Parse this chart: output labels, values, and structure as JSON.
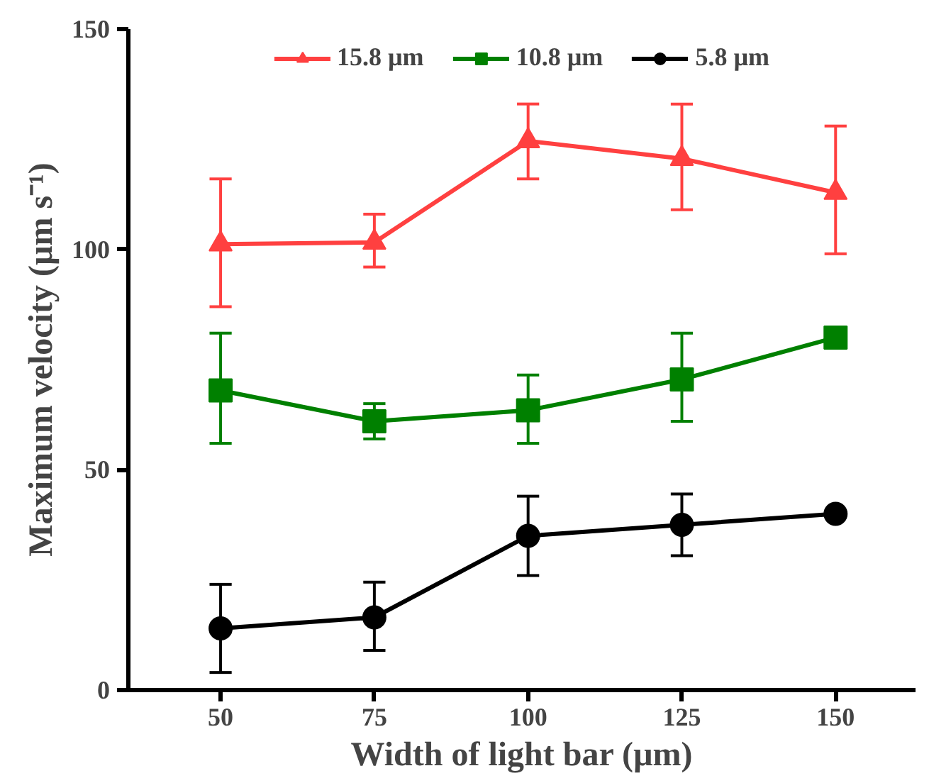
{
  "chart_data": {
    "type": "line",
    "xlabel": "Width of light bar (µm)",
    "ylabel": "Maximum velocity (µm s⁻¹)",
    "x": [
      50,
      75,
      100,
      125,
      150
    ],
    "xlim": [
      35,
      163
    ],
    "xticks": [
      50,
      75,
      100,
      125,
      150
    ],
    "ylim": [
      0,
      150
    ],
    "yticks": [
      0,
      50,
      100,
      150
    ],
    "grid": false,
    "legend": "top",
    "series": [
      {
        "name": "15.8 µm",
        "color": "#ff4040",
        "marker": "triangle",
        "values": [
          101.2,
          101.6,
          124.6,
          120.6,
          112.9
        ],
        "errors": [
          [
            87,
            116
          ],
          [
            96,
            108
          ],
          [
            116,
            133
          ],
          [
            109,
            133
          ],
          [
            99,
            128
          ]
        ]
      },
      {
        "name": "10.8 µm",
        "color": "#008000",
        "marker": "square",
        "values": [
          68,
          61,
          63.5,
          70.5,
          80
        ],
        "errors": [
          [
            56,
            81
          ],
          [
            57,
            65
          ],
          [
            56,
            71.5
          ],
          [
            61,
            81
          ],
          null
        ]
      },
      {
        "name": "5.8 µm",
        "color": "#000000",
        "marker": "circle",
        "values": [
          14,
          16.5,
          35,
          37.5,
          40
        ],
        "errors": [
          [
            4,
            24
          ],
          [
            9,
            24.5
          ],
          [
            26,
            44
          ],
          [
            30.5,
            44.5
          ],
          null
        ]
      }
    ]
  }
}
